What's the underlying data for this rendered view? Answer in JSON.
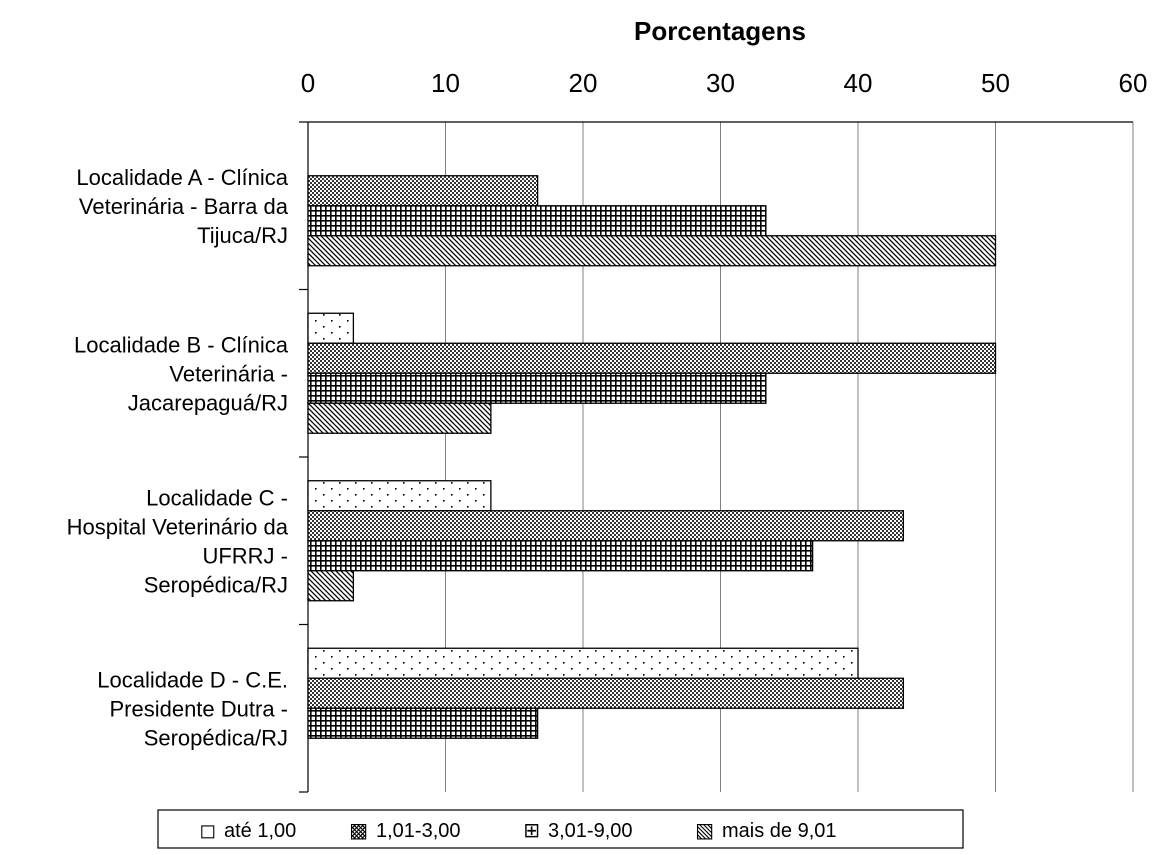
{
  "chart_data": {
    "type": "bar",
    "orientation": "horizontal",
    "title": "",
    "xlabel": "Porcentagens",
    "ylabel": "",
    "xlim": [
      0,
      60
    ],
    "x_ticks": [
      0,
      10,
      20,
      30,
      40,
      50,
      60
    ],
    "x_axis_position": "top",
    "grid": "vertical",
    "legend_position": "bottom",
    "categories": [
      [
        "Localidade A - Clínica",
        "Veterinária - Barra da",
        "Tijuca/RJ"
      ],
      [
        "Localidade B - Clínica",
        "Veterinária -",
        "Jacarepaguá/RJ"
      ],
      [
        "Localidade C -",
        "Hospital Veterinário da",
        "UFRRJ -",
        "Seropédica/RJ"
      ],
      [
        "Localidade D - C.E.",
        "Presidente Dutra -",
        "Seropédica/RJ"
      ]
    ],
    "series": [
      {
        "name": "até 1,00",
        "pattern": "dots",
        "legend_symbol": "◻",
        "values": [
          0,
          3.3,
          13.3,
          40
        ]
      },
      {
        "name": "1,01-3,00",
        "pattern": "checker",
        "legend_symbol": "▩",
        "values": [
          16.7,
          50,
          43.3,
          43.3
        ]
      },
      {
        "name": "3,01-9,00",
        "pattern": "grid",
        "legend_symbol": "⊞",
        "values": [
          33.3,
          33.3,
          36.7,
          16.7
        ]
      },
      {
        "name": "mais de 9,01",
        "pattern": "diagonal",
        "legend_symbol": "▧",
        "values": [
          50,
          13.3,
          3.3,
          0
        ]
      }
    ]
  }
}
